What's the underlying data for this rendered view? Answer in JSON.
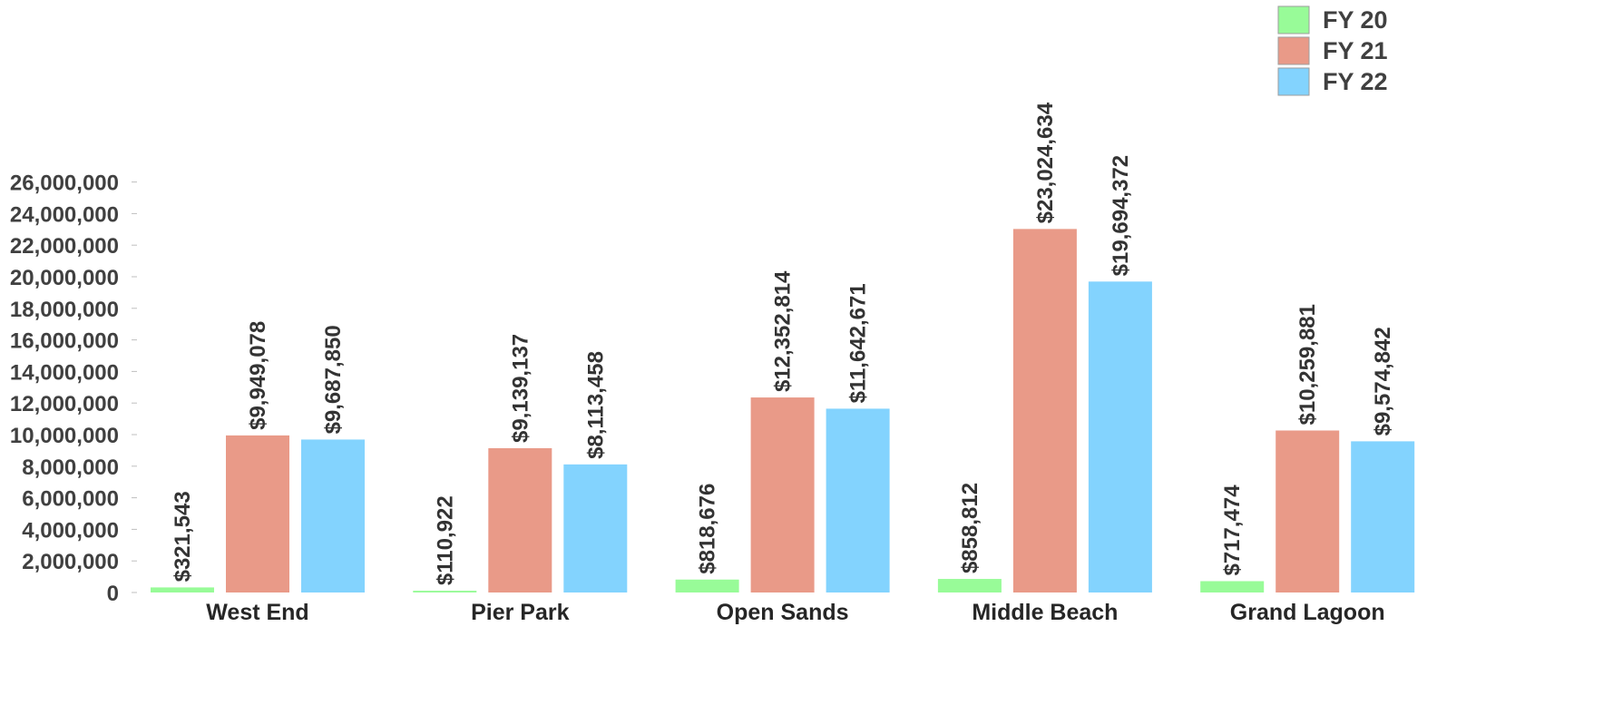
{
  "chart_data": {
    "type": "bar",
    "categories": [
      "West End",
      "Pier Park",
      "Open Sands",
      "Middle Beach",
      "Grand Lagoon"
    ],
    "series": [
      {
        "name": "FY 20",
        "color": "#98fb98",
        "values": [
          321543,
          110922,
          818676,
          858812,
          717474
        ],
        "labels": [
          "$321,543",
          "$110,922",
          "$818,676",
          "$858,812",
          "$717,474"
        ]
      },
      {
        "name": "FY 21",
        "color": "#e99a88",
        "values": [
          9949078,
          9139137,
          12352814,
          23024634,
          10259881
        ],
        "labels": [
          "$9,949,078",
          "$9,139,137",
          "$12,352,814",
          "$23,024,634",
          "$10,259,881"
        ]
      },
      {
        "name": "FY 22",
        "color": "#83d3fe",
        "values": [
          9687850,
          8113458,
          11642671,
          19694372,
          9574842
        ],
        "labels": [
          "$9,687,850",
          "$8,113,458",
          "$11,642,671",
          "$19,694,372",
          "$9,574,842"
        ]
      }
    ],
    "yticks": [
      "0",
      "2,000,000",
      "4,000,000",
      "6,000,000",
      "8,000,000",
      "10,000,000",
      "12,000,000",
      "14,000,000",
      "16,000,000",
      "18,000,000",
      "20,000,000",
      "22,000,000",
      "24,000,000",
      "26,000,000"
    ],
    "ylim": [
      0,
      26000000
    ],
    "title": "",
    "xlabel": "",
    "ylabel": "",
    "legend_position": "top-right",
    "grid": false
  }
}
